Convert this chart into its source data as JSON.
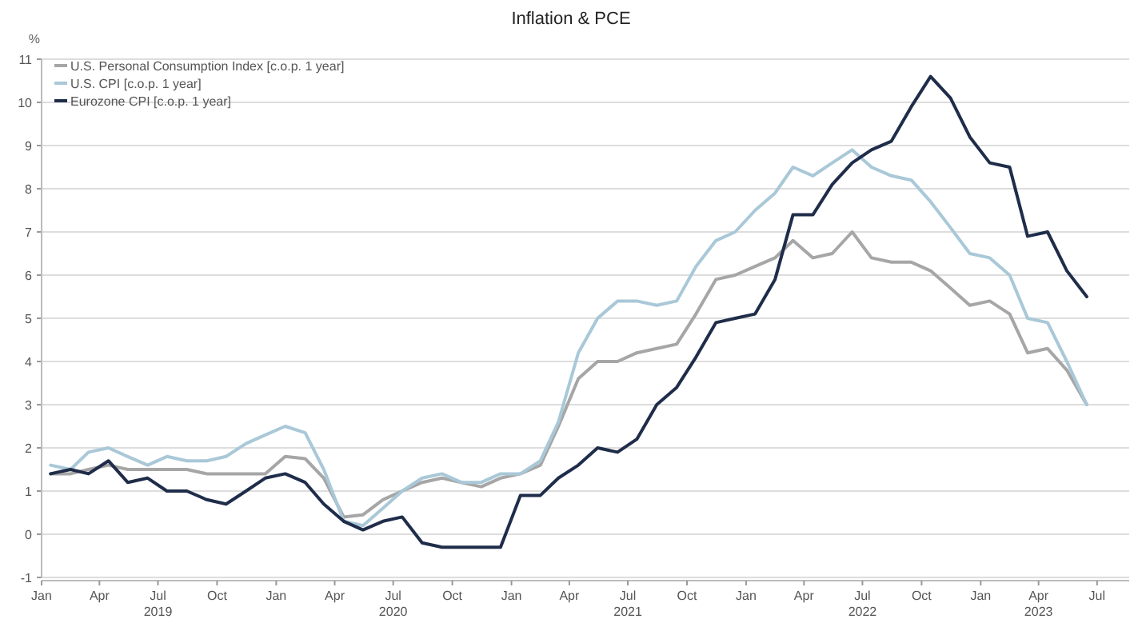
{
  "chart_data": {
    "type": "line",
    "title": "Inflation & PCE",
    "ylabel": "%",
    "x": [
      "2019-01-15",
      "2019-02-15",
      "2019-03-15",
      "2019-04-15",
      "2019-05-15",
      "2019-06-15",
      "2019-07-15",
      "2019-08-15",
      "2019-09-15",
      "2019-10-15",
      "2019-11-15",
      "2019-12-15",
      "2020-01-15",
      "2020-02-15",
      "2020-03-15",
      "2020-04-15",
      "2020-05-15",
      "2020-06-15",
      "2020-07-15",
      "2020-08-15",
      "2020-09-15",
      "2020-10-15",
      "2020-11-15",
      "2020-12-15",
      "2021-01-15",
      "2021-02-15",
      "2021-03-15",
      "2021-04-15",
      "2021-05-15",
      "2021-06-15",
      "2021-07-15",
      "2021-08-15",
      "2021-09-15",
      "2021-10-15",
      "2021-11-15",
      "2021-12-15",
      "2022-01-15",
      "2022-02-15",
      "2022-03-15",
      "2022-04-15",
      "2022-05-15",
      "2022-06-15",
      "2022-07-15",
      "2022-08-15",
      "2022-09-15",
      "2022-10-15",
      "2022-11-15",
      "2022-12-15",
      "2023-01-15",
      "2023-02-15",
      "2023-03-15",
      "2023-04-15",
      "2023-05-15",
      "2023-06-15"
    ],
    "series": [
      {
        "name": "U.S. Personal Consumption Index [c.o.p. 1 year]",
        "color": "#a6a6a6",
        "values": [
          1.4,
          1.4,
          1.5,
          1.6,
          1.5,
          1.5,
          1.5,
          1.5,
          1.4,
          1.4,
          1.4,
          1.4,
          1.8,
          1.75,
          1.3,
          0.4,
          0.45,
          0.8,
          1.0,
          1.2,
          1.3,
          1.2,
          1.1,
          1.3,
          1.4,
          1.6,
          2.5,
          3.6,
          4.0,
          4.0,
          4.2,
          4.3,
          4.4,
          5.1,
          5.9,
          6.0,
          6.2,
          6.4,
          6.8,
          6.4,
          6.5,
          7.0,
          6.4,
          6.3,
          6.3,
          6.1,
          5.7,
          5.3,
          5.4,
          5.1,
          4.2,
          4.3,
          3.8,
          3.0
        ]
      },
      {
        "name": "U.S. CPI [c.o.p. 1 year]",
        "color": "#a9c8d8",
        "values": [
          1.6,
          1.5,
          1.9,
          2.0,
          1.8,
          1.6,
          1.8,
          1.7,
          1.7,
          1.8,
          2.1,
          2.3,
          2.5,
          2.35,
          1.5,
          0.3,
          0.2,
          0.6,
          1.0,
          1.3,
          1.4,
          1.2,
          1.2,
          1.4,
          1.4,
          1.7,
          2.6,
          4.2,
          5.0,
          5.4,
          5.4,
          5.3,
          5.4,
          6.2,
          6.8,
          7.0,
          7.5,
          7.9,
          8.5,
          8.3,
          8.6,
          8.9,
          8.5,
          8.3,
          8.2,
          7.7,
          7.1,
          6.5,
          6.4,
          6.0,
          5.0,
          4.9,
          4.0,
          3.0
        ]
      },
      {
        "name": "Eurozone CPI [c.o.p. 1 year]",
        "color": "#1f2d4a",
        "values": [
          1.4,
          1.5,
          1.4,
          1.7,
          1.2,
          1.3,
          1.0,
          1.0,
          0.8,
          0.7,
          1.0,
          1.3,
          1.4,
          1.2,
          0.7,
          0.3,
          0.1,
          0.3,
          0.4,
          -0.2,
          -0.3,
          -0.3,
          -0.3,
          -0.3,
          0.9,
          0.9,
          1.3,
          1.6,
          2.0,
          1.9,
          2.2,
          3.0,
          3.4,
          4.1,
          4.9,
          5.0,
          5.1,
          5.9,
          7.4,
          7.4,
          8.1,
          8.6,
          8.9,
          9.1,
          9.9,
          10.6,
          10.1,
          9.2,
          8.6,
          8.5,
          6.9,
          7.0,
          6.1,
          5.5
        ]
      }
    ],
    "xlim": [
      "2019-01-01",
      "2023-08-20"
    ],
    "xticks": [
      {
        "value": "2019-01-01",
        "label": "Jan"
      },
      {
        "value": "2019-04-01",
        "label": "Apr"
      },
      {
        "value": "2019-07-01",
        "label": "Jul 2019"
      },
      {
        "value": "2019-10-01",
        "label": "Oct"
      },
      {
        "value": "2020-01-01",
        "label": "Jan"
      },
      {
        "value": "2020-04-01",
        "label": "Apr"
      },
      {
        "value": "2020-07-01",
        "label": "Jul 2020"
      },
      {
        "value": "2020-10-01",
        "label": "Oct"
      },
      {
        "value": "2021-01-01",
        "label": "Jan"
      },
      {
        "value": "2021-04-01",
        "label": "Apr"
      },
      {
        "value": "2021-07-01",
        "label": "Jul 2021"
      },
      {
        "value": "2021-10-01",
        "label": "Oct"
      },
      {
        "value": "2022-01-01",
        "label": "Jan"
      },
      {
        "value": "2022-04-01",
        "label": "Apr"
      },
      {
        "value": "2022-07-01",
        "label": "Jul 2022"
      },
      {
        "value": "2022-10-01",
        "label": "Oct"
      },
      {
        "value": "2023-01-01",
        "label": "Jan"
      },
      {
        "value": "2023-04-01",
        "label": "Apr 2023"
      },
      {
        "value": "2023-07-01",
        "label": "Jul"
      }
    ],
    "ylim": [
      -1,
      11
    ],
    "yticks": [
      -1,
      0,
      1,
      2,
      3,
      4,
      5,
      6,
      7,
      8,
      9,
      10,
      11
    ],
    "grid": "y",
    "legend": "top left",
    "marker": "none",
    "line_style": "solid"
  }
}
